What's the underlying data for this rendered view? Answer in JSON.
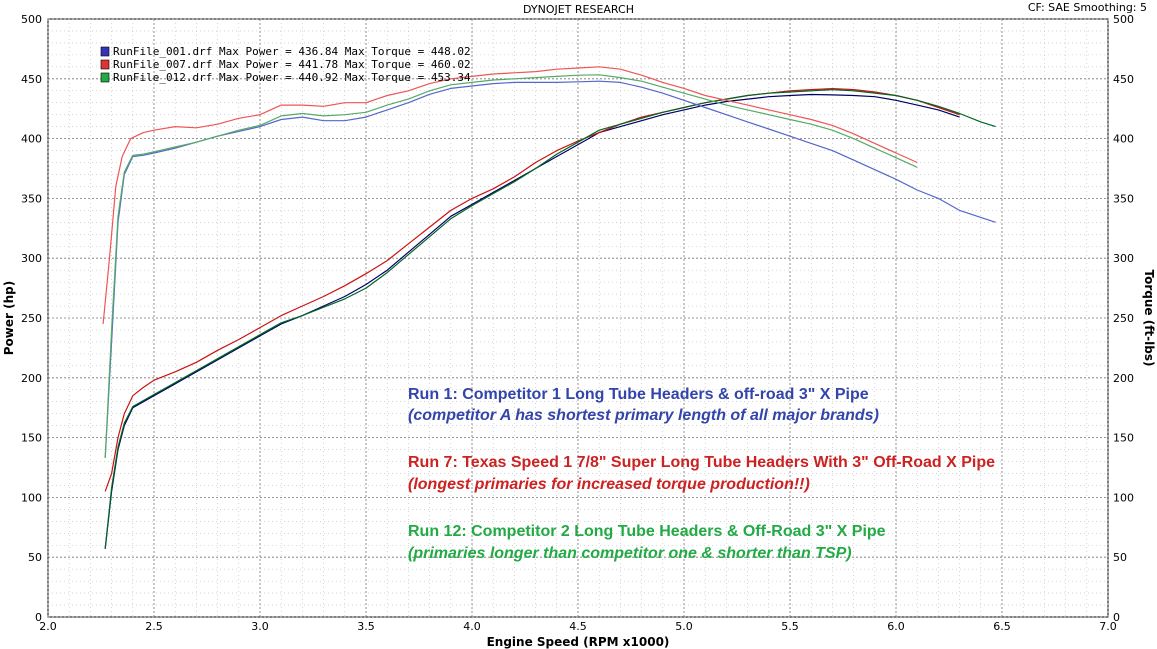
{
  "header": {
    "title": "DYNOJET RESEARCH",
    "settings": "CF: SAE  Smoothing: 5"
  },
  "chart_data": {
    "type": "line",
    "xlabel": "Engine Speed (RPM x1000)",
    "ylabel_left": "Power (hp)",
    "ylabel_right": "Torque (ft-lbs)",
    "xlim": [
      2.0,
      7.0
    ],
    "ylim": [
      0,
      500
    ],
    "x_ticks": [
      "2.0",
      "2.5",
      "3.0",
      "3.5",
      "4.0",
      "4.5",
      "5.0",
      "5.5",
      "6.0",
      "6.5",
      "7.0"
    ],
    "y_ticks": [
      "0",
      "50",
      "100",
      "150",
      "200",
      "250",
      "300",
      "350",
      "400",
      "450",
      "500"
    ],
    "grid": true,
    "legend": [
      {
        "text": "RunFile_001.drf Max Power = 436.84    Max Torque = 448.02",
        "color": "#3333bb"
      },
      {
        "text": "RunFile_007.drf Max Power = 441.78    Max Torque = 460.02",
        "color": "#dd3333"
      },
      {
        "text": "RunFile_012.drf Max Power = 440.92    Max Torque = 453.34",
        "color": "#22aa44"
      }
    ],
    "series": [
      {
        "name": "RunFile_001.drf Power",
        "color": "#000066",
        "x": [
          2.27,
          2.3,
          2.33,
          2.36,
          2.4,
          2.45,
          2.5,
          2.6,
          2.7,
          2.8,
          2.9,
          3.0,
          3.1,
          3.2,
          3.3,
          3.4,
          3.5,
          3.6,
          3.7,
          3.8,
          3.9,
          4.0,
          4.1,
          4.2,
          4.3,
          4.4,
          4.5,
          4.6,
          4.7,
          4.8,
          4.9,
          5.0,
          5.1,
          5.2,
          5.3,
          5.4,
          5.5,
          5.6,
          5.7,
          5.8,
          5.9,
          6.0,
          6.1,
          6.2,
          6.3
        ],
        "y": [
          57,
          105,
          140,
          160,
          175,
          180,
          185,
          195,
          205,
          215,
          225,
          235,
          245,
          252,
          260,
          268,
          278,
          290,
          305,
          320,
          335,
          345,
          355,
          365,
          375,
          385,
          395,
          405,
          410,
          415,
          420,
          424,
          428,
          431,
          433,
          435,
          436,
          436.84,
          436.5,
          436,
          435,
          432,
          428,
          424,
          418
        ]
      },
      {
        "name": "RunFile_007.drf Power",
        "color": "#cc1111",
        "x": [
          2.27,
          2.3,
          2.33,
          2.36,
          2.4,
          2.45,
          2.5,
          2.6,
          2.7,
          2.8,
          2.9,
          3.0,
          3.1,
          3.2,
          3.3,
          3.4,
          3.5,
          3.6,
          3.7,
          3.8,
          3.9,
          4.0,
          4.1,
          4.2,
          4.3,
          4.4,
          4.5,
          4.6,
          4.7,
          4.8,
          4.9,
          5.0,
          5.1,
          5.2,
          5.3,
          5.4,
          5.5,
          5.6,
          5.7,
          5.8,
          5.9,
          6.0,
          6.1,
          6.2,
          6.3
        ],
        "y": [
          105,
          120,
          150,
          170,
          185,
          192,
          198,
          205,
          213,
          223,
          232,
          242,
          252,
          260,
          268,
          277,
          287,
          298,
          312,
          326,
          340,
          350,
          358,
          368,
          380,
          390,
          398,
          405,
          412,
          418,
          422,
          426,
          430,
          433,
          436,
          438,
          440,
          441,
          441.78,
          441,
          439,
          436,
          432,
          426,
          420
        ]
      },
      {
        "name": "RunFile_012.drf Power",
        "color": "#006622",
        "x": [
          2.27,
          2.3,
          2.33,
          2.36,
          2.4,
          2.45,
          2.5,
          2.6,
          2.7,
          2.8,
          2.9,
          3.0,
          3.1,
          3.2,
          3.3,
          3.4,
          3.5,
          3.6,
          3.7,
          3.8,
          3.9,
          4.0,
          4.1,
          4.2,
          4.3,
          4.4,
          4.5,
          4.6,
          4.7,
          4.8,
          4.9,
          5.0,
          5.1,
          5.2,
          5.3,
          5.4,
          5.5,
          5.6,
          5.7,
          5.8,
          5.9,
          6.0,
          6.1,
          6.2,
          6.3,
          6.4,
          6.47
        ],
        "y": [
          57,
          108,
          142,
          162,
          176,
          181,
          186,
          196,
          206,
          216,
          226,
          236,
          246,
          252,
          259,
          266,
          275,
          288,
          303,
          318,
          333,
          344,
          354,
          364,
          375,
          387,
          397,
          407,
          412,
          417,
          422,
          426,
          430,
          433,
          436,
          438,
          439,
          440,
          440.92,
          440,
          438,
          436,
          432,
          427,
          421,
          414,
          410
        ]
      },
      {
        "name": "RunFile_001.drf Torque",
        "color": "#5566cc",
        "x": [
          2.27,
          2.3,
          2.33,
          2.36,
          2.4,
          2.45,
          2.5,
          2.6,
          2.7,
          2.8,
          2.9,
          3.0,
          3.1,
          3.2,
          3.3,
          3.4,
          3.5,
          3.6,
          3.7,
          3.8,
          3.9,
          4.0,
          4.1,
          4.2,
          4.3,
          4.4,
          4.5,
          4.6,
          4.7,
          4.8,
          4.9,
          5.0,
          5.1,
          5.2,
          5.3,
          5.4,
          5.5,
          5.6,
          5.7,
          5.8,
          5.9,
          6.0,
          6.1,
          6.2,
          6.3,
          6.47
        ],
        "y": [
          133,
          230,
          330,
          370,
          385,
          386,
          388,
          392,
          397,
          402,
          406,
          410,
          416,
          418,
          415,
          415,
          418,
          424,
          430,
          437,
          442,
          444,
          446,
          447,
          447,
          447,
          447.5,
          448.02,
          447,
          443,
          438,
          432,
          426,
          420,
          414,
          408,
          402,
          396,
          390,
          382,
          374,
          366,
          357,
          350,
          340,
          330
        ]
      },
      {
        "name": "RunFile_007.drf Torque",
        "color": "#ee5555",
        "x": [
          2.26,
          2.29,
          2.32,
          2.35,
          2.39,
          2.45,
          2.5,
          2.6,
          2.7,
          2.8,
          2.9,
          3.0,
          3.1,
          3.2,
          3.3,
          3.4,
          3.5,
          3.6,
          3.7,
          3.8,
          3.9,
          4.0,
          4.1,
          4.2,
          4.3,
          4.4,
          4.5,
          4.6,
          4.7,
          4.8,
          4.9,
          5.0,
          5.1,
          5.2,
          5.3,
          5.4,
          5.5,
          5.6,
          5.7,
          5.8,
          5.9,
          6.0,
          6.1
        ],
        "y": [
          245,
          300,
          360,
          385,
          400,
          405,
          407,
          410,
          409,
          412,
          417,
          420,
          428,
          428,
          427,
          430,
          430,
          436,
          440,
          446,
          450,
          452,
          454,
          455,
          456,
          458,
          459,
          460.02,
          458,
          453,
          447,
          442,
          436,
          432,
          428,
          424,
          420,
          416,
          411,
          404,
          396,
          388,
          380
        ]
      },
      {
        "name": "RunFile_012.drf Torque",
        "color": "#55aa66",
        "x": [
          2.27,
          2.3,
          2.33,
          2.36,
          2.4,
          2.45,
          2.5,
          2.6,
          2.7,
          2.8,
          2.9,
          3.0,
          3.1,
          3.2,
          3.3,
          3.4,
          3.5,
          3.6,
          3.7,
          3.8,
          3.9,
          4.0,
          4.1,
          4.2,
          4.3,
          4.4,
          4.5,
          4.6,
          4.7,
          4.8,
          4.9,
          5.0,
          5.1,
          5.2,
          5.3,
          5.4,
          5.5,
          5.6,
          5.7,
          5.8,
          5.9,
          6.0,
          6.1
        ],
        "y": [
          133,
          240,
          335,
          372,
          386,
          387,
          389,
          393,
          397,
          402,
          407,
          411,
          419,
          421,
          419,
          420,
          422,
          428,
          433,
          440,
          445,
          447,
          449,
          450,
          451,
          452,
          453,
          453.34,
          451,
          448,
          443,
          438,
          433,
          428,
          424,
          420,
          416,
          412,
          407,
          400,
          392,
          384,
          376
        ]
      }
    ],
    "annotations": [
      {
        "text": "Run 1:  Competitor 1 Long Tube Headers & off-road 3\" X Pipe",
        "color": "#3344aa",
        "italic": false
      },
      {
        "text": "(competitor A has shortest primary length of all major brands)",
        "color": "#3344aa",
        "italic": true
      },
      {
        "text": "Run 7: Texas Speed 1 7/8\" Super Long Tube Headers With 3\" Off-Road X Pipe",
        "color": "#cc2222",
        "italic": false
      },
      {
        "text": "(longest primaries for increased torque production!!)",
        "color": "#cc2222",
        "italic": true
      },
      {
        "text": "Run 12: Competitor 2 Long Tube Headers & Off-Road 3\" X Pipe",
        "color": "#22aa44",
        "italic": false
      },
      {
        "text": "(primaries longer than competitor one & shorter than TSP)",
        "color": "#22aa44",
        "italic": true
      }
    ]
  }
}
